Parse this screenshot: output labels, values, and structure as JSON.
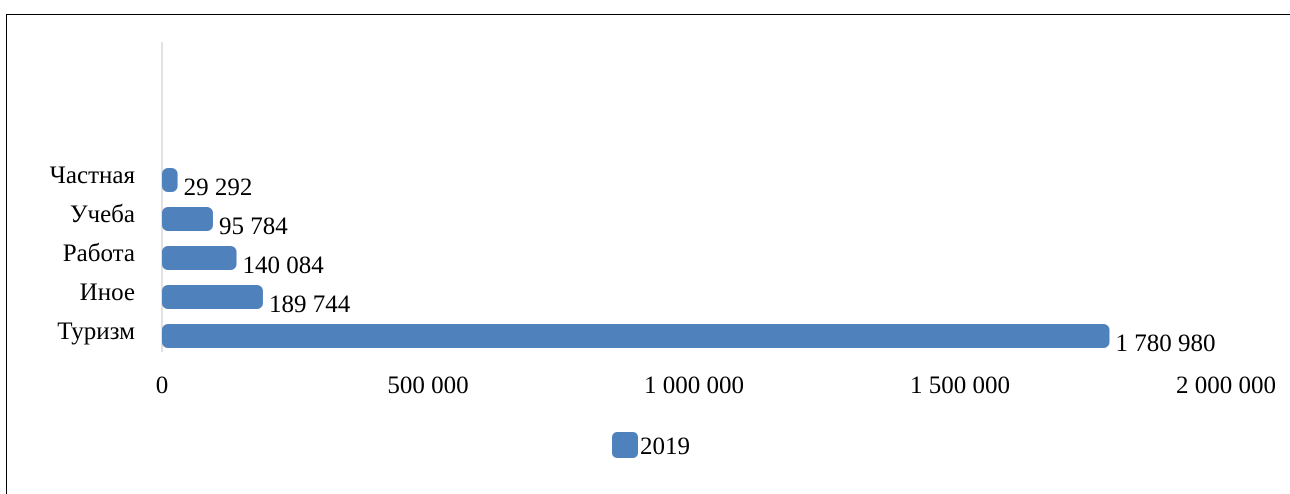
{
  "chart_data": {
    "type": "bar",
    "orientation": "horizontal",
    "categories": [
      "Туризм",
      "Иное",
      "Работа",
      "Учеба",
      "Частная"
    ],
    "series": [
      {
        "name": "2019",
        "values": [
          1780980,
          189744,
          140084,
          95784,
          29292
        ],
        "labels": [
          "1 780 980",
          "189 744",
          "140 084",
          "95 784",
          "29 292"
        ]
      }
    ],
    "title": "",
    "xlabel": "",
    "ylabel": "",
    "xlim": [
      0,
      2000000
    ],
    "xticks": [
      0,
      500000,
      1000000,
      1500000,
      2000000
    ],
    "xtick_labels": [
      "0",
      "500 000",
      "1 000 000",
      "1 500 000",
      "2 000 000"
    ],
    "grid": false,
    "legend": "bottom-center",
    "bar_color": "#4F81BD"
  }
}
